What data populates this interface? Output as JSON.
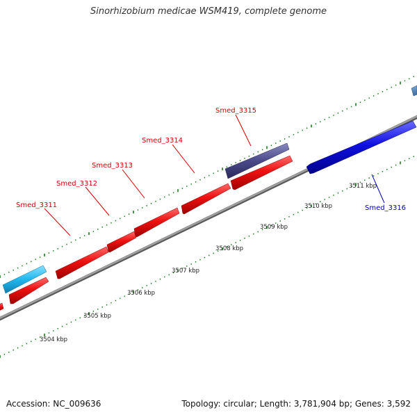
{
  "title": "Sinorhizobium medicae WSM419, complete genome",
  "footer": {
    "accession": "Accession: NC_009636",
    "summary": "Topology: circular; Length: 3,781,904 bp; Genes: 3,592"
  },
  "ticks": [
    {
      "label": "3504 kbp"
    },
    {
      "label": "3505 kbp"
    },
    {
      "label": "3506 kbp"
    },
    {
      "label": "3507 kbp"
    },
    {
      "label": "3508 kbp"
    },
    {
      "label": "3509 kbp"
    },
    {
      "label": "3510 kbp"
    },
    {
      "label": "3511 kbp"
    }
  ],
  "genes": [
    {
      "label": "Smed_3311",
      "color": "#d40000"
    },
    {
      "label": "Smed_3312",
      "color": "#d40000"
    },
    {
      "label": "Smed_3313",
      "color": "#d40000"
    },
    {
      "label": "Smed_3314",
      "color": "#d40000"
    },
    {
      "label": "Smed_3315",
      "color": "#d40000"
    },
    {
      "label": "Smed_3316",
      "color": "#0000b0"
    }
  ],
  "colors": {
    "forward_gene": "#ee1111",
    "reverse_gene": "#1010e0",
    "other_gene_purple": "#4a4a8a",
    "other_gene_cyan": "#22b8ee",
    "backbone": "#8a8a8a",
    "tick_marks": "#1a7a1a"
  }
}
